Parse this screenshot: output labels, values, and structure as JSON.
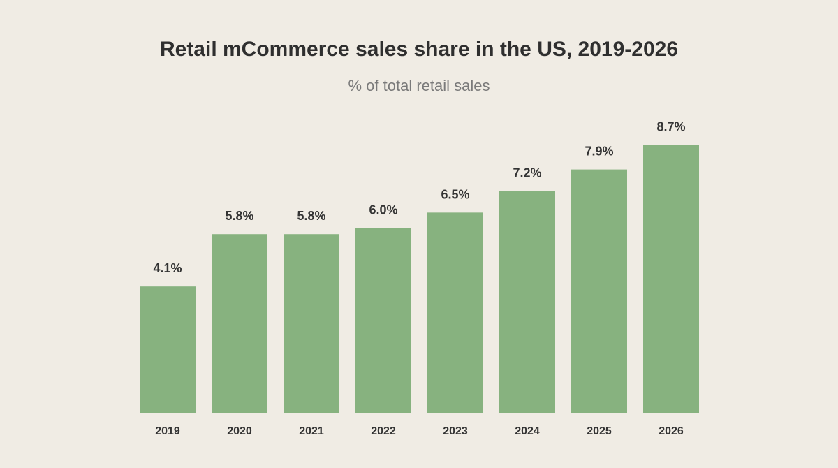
{
  "chart_data": {
    "type": "bar",
    "title": "Retail mCommerce sales share in the US, 2019-2026",
    "subtitle": "% of total retail sales",
    "xlabel": "",
    "ylabel": "",
    "categories": [
      "2019",
      "2020",
      "2021",
      "2022",
      "2023",
      "2024",
      "2025",
      "2026"
    ],
    "values": [
      4.1,
      5.8,
      5.8,
      6.0,
      6.5,
      7.2,
      7.9,
      8.7
    ],
    "value_labels": [
      "4.1%",
      "5.8%",
      "5.8%",
      "6.0%",
      "6.5%",
      "7.2%",
      "7.9%",
      "8.7%"
    ],
    "ylim": [
      0,
      10
    ],
    "grid": false,
    "legend": "none",
    "bar_color": "#87b27f"
  }
}
